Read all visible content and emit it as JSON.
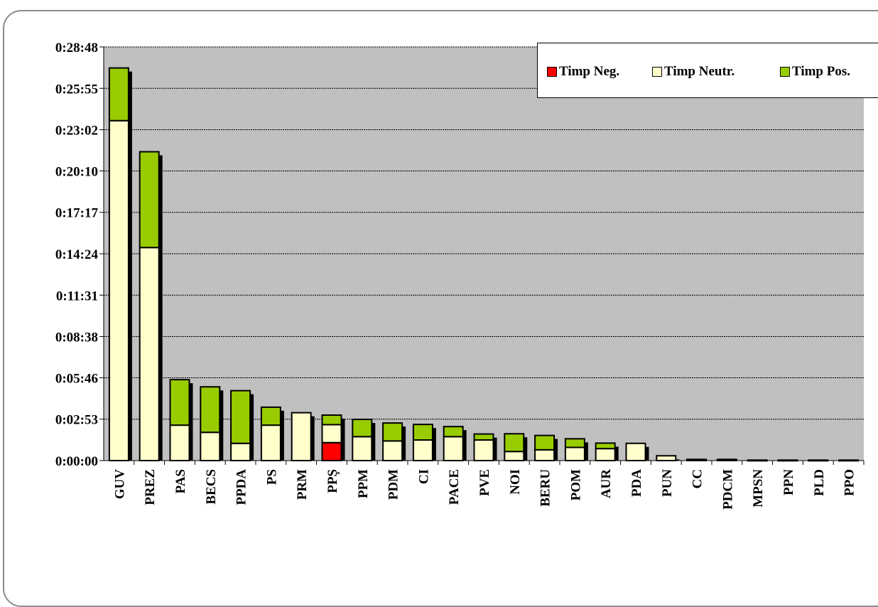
{
  "chart_data": {
    "type": "bar",
    "stacked": true,
    "ylim": [
      "0:00:00",
      "0:28:48"
    ],
    "y_ticks": [
      "0:00:00",
      "0:02:53",
      "0:05:46",
      "0:08:38",
      "0:11:31",
      "0:14:24",
      "0:17:17",
      "0:20:10",
      "0:23:02",
      "0:25:55",
      "0:28:48"
    ],
    "categories": [
      "GUV",
      "PREZ",
      "PAS",
      "BECS",
      "PPDA",
      "PS",
      "PRM",
      "PPȘ",
      "PPM",
      "PDM",
      "CI",
      "PACE",
      "PVE",
      "NOI",
      "BERU",
      "POM",
      "AUR",
      "PDA",
      "PUN",
      "CC",
      "PDCM",
      "MPSN",
      "PPN",
      "PLD",
      "PPO"
    ],
    "series": [
      {
        "name": "Timp Neg.",
        "color": "#ff0000",
        "values": [
          "0:00:00",
          "0:00:00",
          "0:00:00",
          "0:00:00",
          "0:00:00",
          "0:00:00",
          "0:00:00",
          "0:01:15",
          "0:00:00",
          "0:00:00",
          "0:00:00",
          "0:00:00",
          "0:00:00",
          "0:00:00",
          "0:00:00",
          "0:00:00",
          "0:00:00",
          "0:00:00",
          "0:00:00",
          "0:00:00",
          "0:00:00",
          "0:00:00",
          "0:00:00",
          "0:00:00",
          "0:00:00"
        ]
      },
      {
        "name": "Timp Neutr.",
        "color": "#ffffcc",
        "values": [
          "0:23:40",
          "0:14:50",
          "0:02:28",
          "0:01:58",
          "0:01:12",
          "0:02:28",
          "0:03:20",
          "0:01:15",
          "0:01:40",
          "0:01:22",
          "0:01:26",
          "0:01:40",
          "0:01:26",
          "0:00:38",
          "0:00:45",
          "0:00:55",
          "0:00:50",
          "0:01:12",
          "0:00:20",
          "0:00:05",
          "0:00:05",
          "0:00:02",
          "0:00:02",
          "0:00:02",
          "0:00:02"
        ]
      },
      {
        "name": "Timp Pos.",
        "color": "#99cc00",
        "values": [
          "0:03:40",
          "0:06:40",
          "0:03:10",
          "0:03:10",
          "0:03:40",
          "0:01:15",
          "0:00:00",
          "0:00:40",
          "0:01:12",
          "0:01:15",
          "0:01:05",
          "0:00:42",
          "0:00:25",
          "0:01:14",
          "0:01:00",
          "0:00:36",
          "0:00:23",
          "0:00:00",
          "0:00:00",
          "0:00:00",
          "0:00:00",
          "0:00:00",
          "0:00:00",
          "0:00:00",
          "0:00:00"
        ]
      }
    ],
    "grid": true,
    "legend_position": "top-right"
  }
}
